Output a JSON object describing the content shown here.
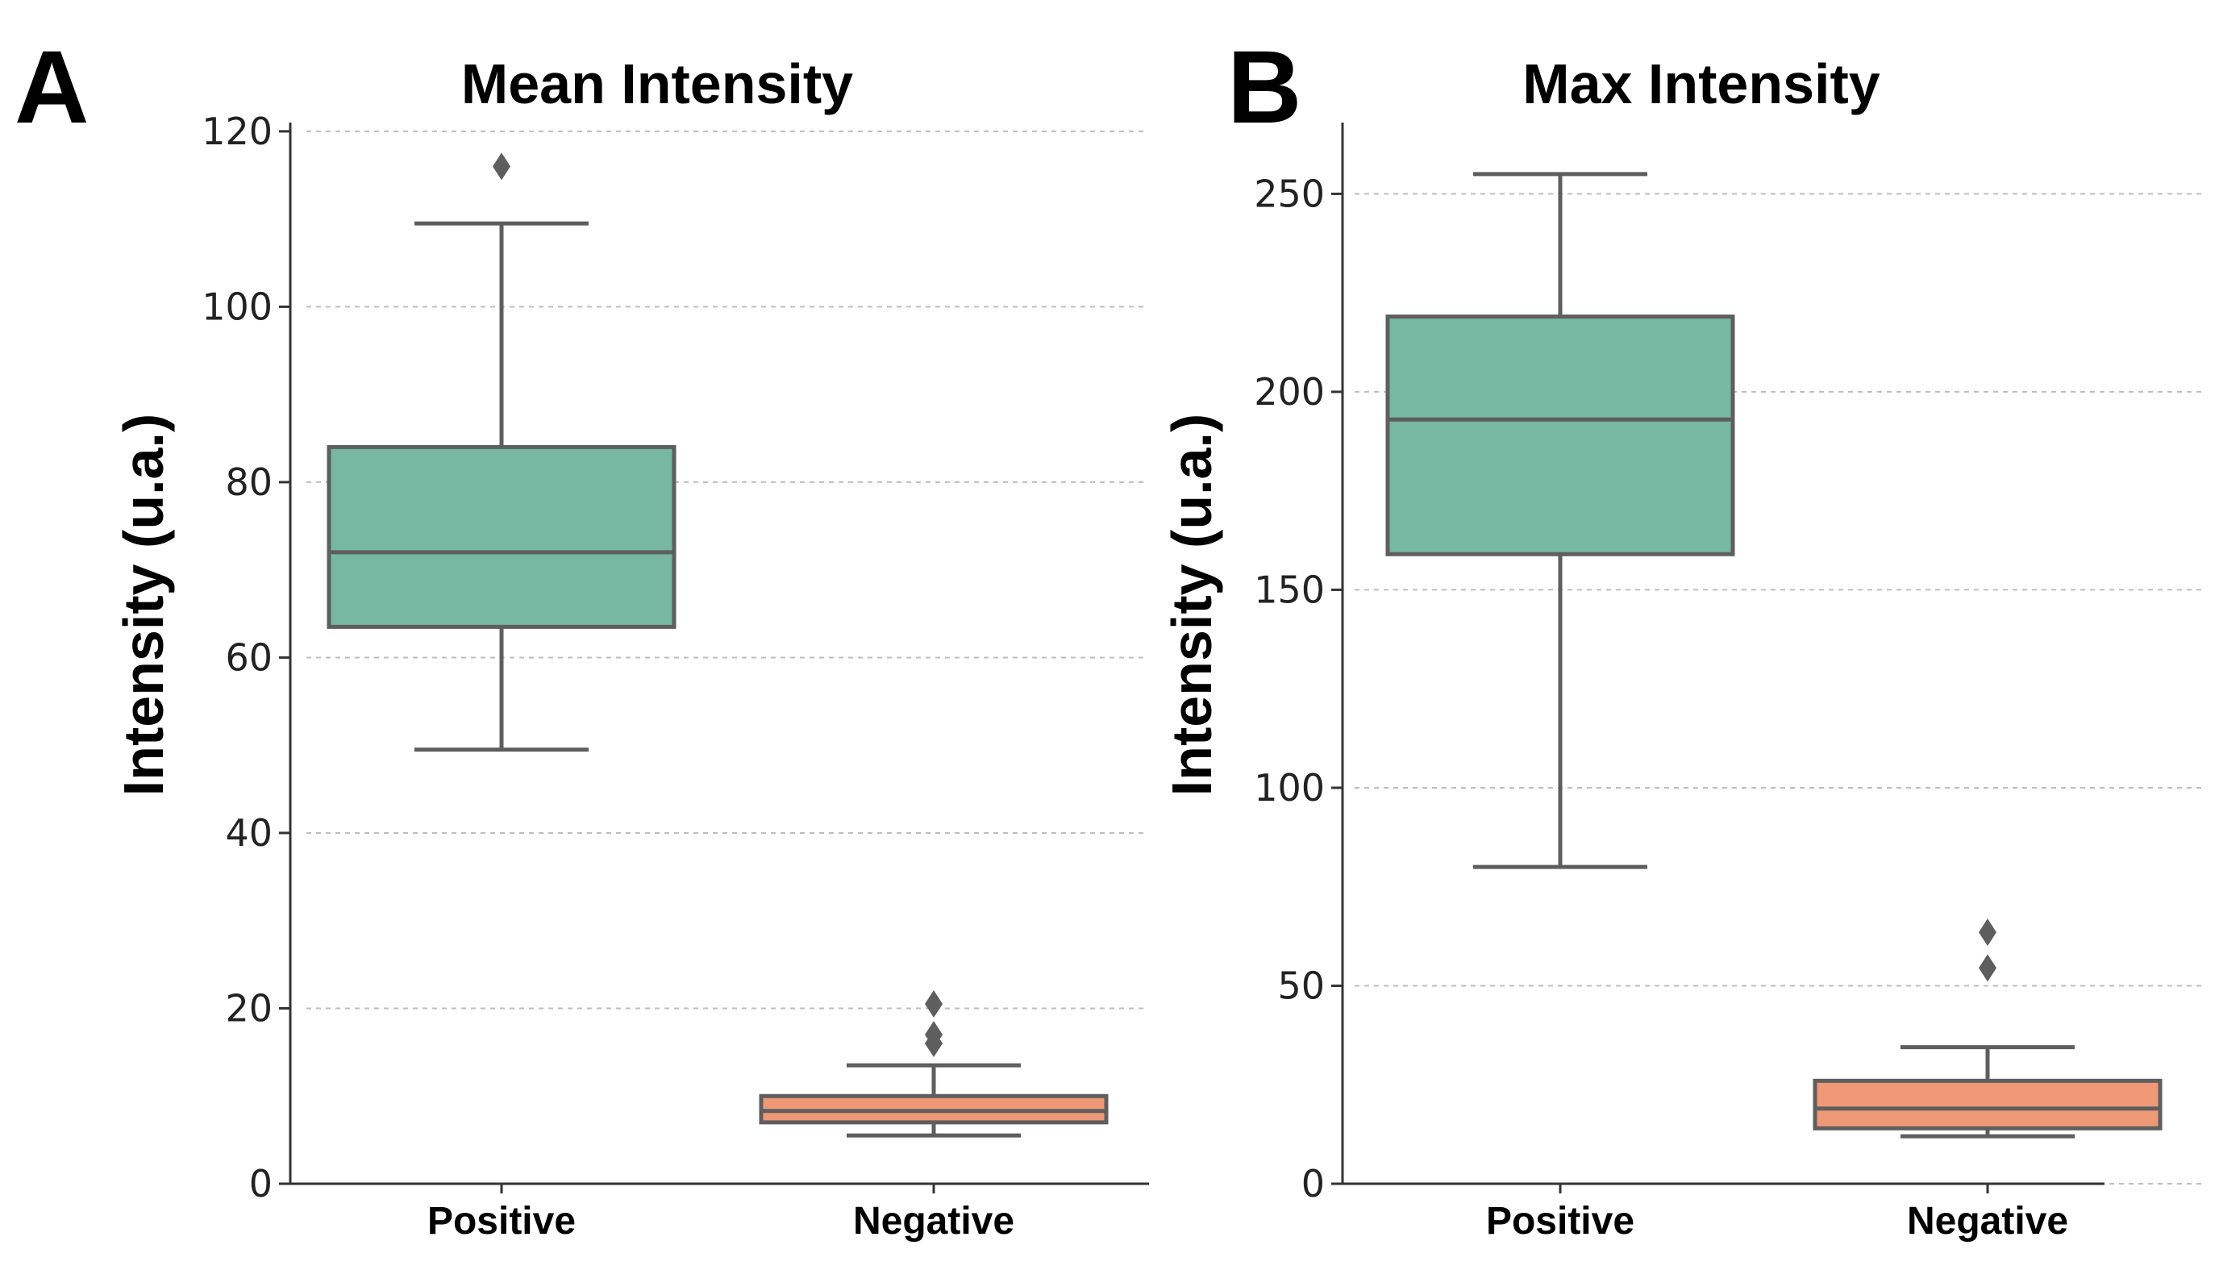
{
  "panels": [
    {
      "letter": "A",
      "title": "Mean Intensity",
      "ylabel": "Intensity (u.a.)"
    },
    {
      "letter": "B",
      "title": "Max Intensity",
      "ylabel": "Intensity (u.a.)"
    }
  ],
  "colors": {
    "positive": "#76b8a2",
    "negative": "#ef9876",
    "box_stroke": "#5e5e5e",
    "outlier": "#5e5e5e"
  },
  "chart_data": [
    {
      "type": "box",
      "title": "Mean Intensity",
      "xlabel": "",
      "ylabel": "Intensity (u.a.)",
      "ylim": [
        0,
        121
      ],
      "yticks": [
        0,
        20,
        40,
        60,
        80,
        100,
        120
      ],
      "grid": true,
      "categories": [
        "Positive",
        "Negative"
      ],
      "series": [
        {
          "name": "Positive",
          "whisker_low": 49.5,
          "q1": 63.5,
          "median": 72,
          "q3": 84,
          "whisker_high": 109.5,
          "outliers": [
            116
          ]
        },
        {
          "name": "Negative",
          "whisker_low": 5.5,
          "q1": 7,
          "median": 8.3,
          "q3": 10,
          "whisker_high": 13.5,
          "outliers": [
            16,
            17,
            20.5
          ]
        }
      ]
    },
    {
      "type": "box",
      "title": "Max Intensity",
      "xlabel": "",
      "ylabel": "Intensity (u.a.)",
      "ylim": [
        0,
        268
      ],
      "yticks": [
        0,
        50,
        100,
        150,
        200,
        250
      ],
      "grid": true,
      "categories": [
        "Positive",
        "Negative"
      ],
      "series": [
        {
          "name": "Positive",
          "whisker_low": 80,
          "q1": 159,
          "median": 193,
          "q3": 219,
          "whisker_high": 255,
          "outliers": []
        },
        {
          "name": "Negative",
          "whisker_low": 12,
          "q1": 14,
          "median": 19,
          "q3": 26,
          "whisker_high": 34.5,
          "outliers": [
            54.5,
            63.5
          ]
        }
      ]
    }
  ]
}
